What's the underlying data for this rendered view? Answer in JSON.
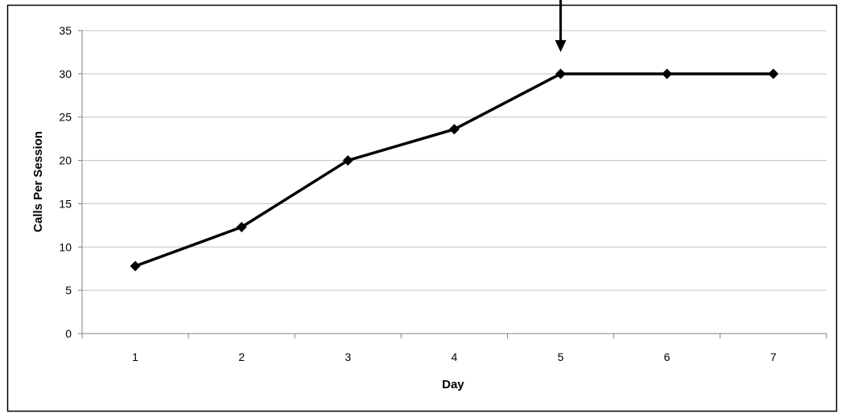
{
  "chart_data": {
    "type": "line",
    "title": "",
    "xlabel": "Day",
    "ylabel": "Calls Per Session",
    "categories": [
      "1",
      "2",
      "3",
      "4",
      "5",
      "6",
      "7"
    ],
    "x": [
      1,
      2,
      3,
      4,
      5,
      6,
      7
    ],
    "series": [
      {
        "values": [
          7.8,
          12.3,
          20.0,
          23.6,
          30.0,
          30.0,
          30.0
        ]
      }
    ],
    "ylim": [
      0,
      35
    ],
    "yticks": [
      0,
      5,
      10,
      15,
      20,
      25,
      30,
      35
    ],
    "grid": "horizontal",
    "legend": "none",
    "annotations": [
      {
        "type": "arrow",
        "direction": "down",
        "x": 5,
        "y": 30
      }
    ],
    "colors": {
      "line": "#000000",
      "marker": "#000000",
      "grid": "#c0c0c0",
      "border": "#000000"
    }
  }
}
